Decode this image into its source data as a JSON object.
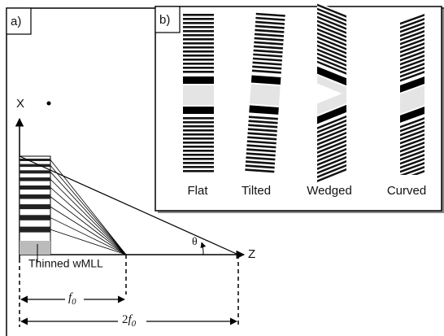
{
  "panel_a": {
    "label": "a)",
    "x_axis": "X",
    "z_axis": "Z",
    "angle": "θ",
    "lens_label": "Thinned wMLL",
    "focal": {
      "symbol": "f",
      "subscript": "0"
    },
    "double_focal": {
      "coefficient": "2",
      "symbol": "f",
      "subscript": "0"
    }
  },
  "panel_b": {
    "label": "b)",
    "variants": [
      "Flat",
      "Tilted",
      "Wedged",
      "Curved"
    ]
  }
}
